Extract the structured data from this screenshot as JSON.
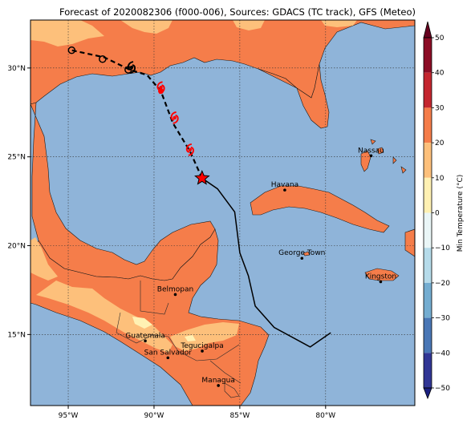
{
  "title": "Forecast of 2020082306 (f000-006), Sources: GDACS (TC track), GFS (Meteo)",
  "colors": {
    "ocean": "#8fb4d9",
    "land_warm": "#f57d4a",
    "land_mild": "#fdc07b",
    "land_pale": "#fff1b3",
    "track_forecast": "#000000",
    "storm_symbol": "#ff0000"
  },
  "map": {
    "lon_range": [
      -97.2,
      -74.8
    ],
    "lat_range": [
      11.0,
      32.7
    ],
    "lon_ticks": [
      "95°W",
      "90°W",
      "85°W",
      "80°W"
    ],
    "lon_tick_values": [
      -95,
      -90,
      -85,
      -80
    ],
    "lat_ticks": [
      "15°N",
      "20°N",
      "25°N",
      "30°N"
    ],
    "lat_tick_values": [
      15,
      20,
      25,
      30
    ],
    "grid": true
  },
  "cities": [
    {
      "name": "Nassau",
      "lon": -77.35,
      "lat": 25.06
    },
    {
      "name": "Havana",
      "lon": -82.38,
      "lat": 23.13
    },
    {
      "name": "George Town",
      "lon": -81.38,
      "lat": 19.29
    },
    {
      "name": "Kingston",
      "lon": -76.79,
      "lat": 17.97
    },
    {
      "name": "Belmopan",
      "lon": -88.76,
      "lat": 17.25
    },
    {
      "name": "Guatemala",
      "lon": -90.51,
      "lat": 14.64
    },
    {
      "name": "Tegucigalpa",
      "lon": -87.19,
      "lat": 14.07
    },
    {
      "name": "San Salvador",
      "lon": -89.19,
      "lat": 13.69
    },
    {
      "name": "Managua",
      "lon": -86.25,
      "lat": 12.13
    }
  ],
  "track": {
    "past": [
      [
        -79.7,
        15.1
      ],
      [
        -80.9,
        14.3
      ],
      [
        -83.0,
        15.4
      ],
      [
        -84.1,
        16.6
      ],
      [
        -84.5,
        18.3
      ],
      [
        -85.0,
        19.6
      ],
      [
        -85.3,
        21.9
      ],
      [
        -86.3,
        23.2
      ],
      [
        -87.2,
        23.8
      ]
    ],
    "forecast": [
      [
        -87.2,
        23.8
      ],
      [
        -87.9,
        25.3
      ],
      [
        -88.9,
        26.9
      ],
      [
        -89.6,
        28.7
      ],
      [
        -90.4,
        29.6
      ],
      [
        -91.4,
        29.9
      ],
      [
        -92.9,
        30.6
      ],
      [
        -94.8,
        31.0
      ]
    ],
    "current": [
      -87.2,
      23.8
    ],
    "forecast_symbols": [
      [
        -87.9,
        25.4
      ],
      [
        -88.8,
        27.2
      ],
      [
        -89.6,
        28.9
      ]
    ],
    "remnant_markers": [
      [
        -91.5,
        29.9
      ],
      [
        -93.0,
        30.5
      ],
      [
        -94.8,
        31.0
      ]
    ]
  },
  "colorbar": {
    "label": "Min Temperature (°C)",
    "ticks": [
      "50",
      "40",
      "30",
      "20",
      "10",
      "0",
      "−10",
      "−20",
      "−30",
      "−40",
      "−50"
    ],
    "tick_values": [
      50,
      40,
      30,
      20,
      10,
      0,
      -10,
      -20,
      -30,
      -40,
      -50
    ],
    "bands": [
      {
        "from": 40,
        "to": 50,
        "color": "#8c0d25"
      },
      {
        "from": 30,
        "to": 40,
        "color": "#c4262f"
      },
      {
        "from": 20,
        "to": 30,
        "color": "#f57d4a"
      },
      {
        "from": 10,
        "to": 20,
        "color": "#fdc07b"
      },
      {
        "from": 0,
        "to": 10,
        "color": "#fff1b3"
      },
      {
        "from": -10,
        "to": 0,
        "color": "#eaf6f7"
      },
      {
        "from": -20,
        "to": -10,
        "color": "#b6dbea"
      },
      {
        "from": -30,
        "to": -20,
        "color": "#74add1"
      },
      {
        "from": -40,
        "to": -30,
        "color": "#4a77b6"
      },
      {
        "from": -50,
        "to": -40,
        "color": "#313695"
      }
    ],
    "over_color": "#67001f",
    "under_color": "#1a1f80"
  }
}
